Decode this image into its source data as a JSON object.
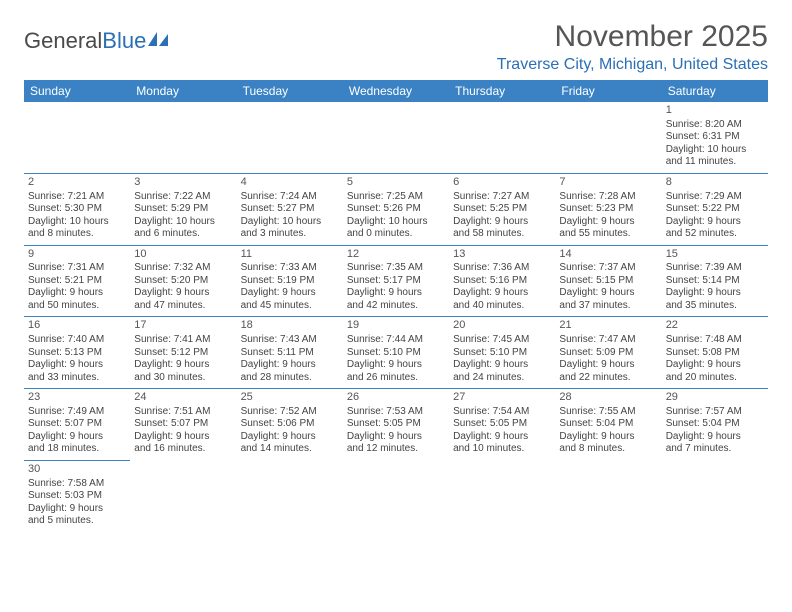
{
  "brand": {
    "part1": "General",
    "part2": "Blue"
  },
  "title": "November 2025",
  "location": "Traverse City, Michigan, United States",
  "header_bg": "#3a82c4",
  "border_color": "#3a82c4",
  "weekdays": [
    "Sunday",
    "Monday",
    "Tuesday",
    "Wednesday",
    "Thursday",
    "Friday",
    "Saturday"
  ],
  "weeks": [
    [
      null,
      null,
      null,
      null,
      null,
      null,
      {
        "n": "1",
        "sr": "Sunrise: 8:20 AM",
        "ss": "Sunset: 6:31 PM",
        "dl1": "Daylight: 10 hours",
        "dl2": "and 11 minutes."
      }
    ],
    [
      {
        "n": "2",
        "sr": "Sunrise: 7:21 AM",
        "ss": "Sunset: 5:30 PM",
        "dl1": "Daylight: 10 hours",
        "dl2": "and 8 minutes."
      },
      {
        "n": "3",
        "sr": "Sunrise: 7:22 AM",
        "ss": "Sunset: 5:29 PM",
        "dl1": "Daylight: 10 hours",
        "dl2": "and 6 minutes."
      },
      {
        "n": "4",
        "sr": "Sunrise: 7:24 AM",
        "ss": "Sunset: 5:27 PM",
        "dl1": "Daylight: 10 hours",
        "dl2": "and 3 minutes."
      },
      {
        "n": "5",
        "sr": "Sunrise: 7:25 AM",
        "ss": "Sunset: 5:26 PM",
        "dl1": "Daylight: 10 hours",
        "dl2": "and 0 minutes."
      },
      {
        "n": "6",
        "sr": "Sunrise: 7:27 AM",
        "ss": "Sunset: 5:25 PM",
        "dl1": "Daylight: 9 hours",
        "dl2": "and 58 minutes."
      },
      {
        "n": "7",
        "sr": "Sunrise: 7:28 AM",
        "ss": "Sunset: 5:23 PM",
        "dl1": "Daylight: 9 hours",
        "dl2": "and 55 minutes."
      },
      {
        "n": "8",
        "sr": "Sunrise: 7:29 AM",
        "ss": "Sunset: 5:22 PM",
        "dl1": "Daylight: 9 hours",
        "dl2": "and 52 minutes."
      }
    ],
    [
      {
        "n": "9",
        "sr": "Sunrise: 7:31 AM",
        "ss": "Sunset: 5:21 PM",
        "dl1": "Daylight: 9 hours",
        "dl2": "and 50 minutes."
      },
      {
        "n": "10",
        "sr": "Sunrise: 7:32 AM",
        "ss": "Sunset: 5:20 PM",
        "dl1": "Daylight: 9 hours",
        "dl2": "and 47 minutes."
      },
      {
        "n": "11",
        "sr": "Sunrise: 7:33 AM",
        "ss": "Sunset: 5:19 PM",
        "dl1": "Daylight: 9 hours",
        "dl2": "and 45 minutes."
      },
      {
        "n": "12",
        "sr": "Sunrise: 7:35 AM",
        "ss": "Sunset: 5:17 PM",
        "dl1": "Daylight: 9 hours",
        "dl2": "and 42 minutes."
      },
      {
        "n": "13",
        "sr": "Sunrise: 7:36 AM",
        "ss": "Sunset: 5:16 PM",
        "dl1": "Daylight: 9 hours",
        "dl2": "and 40 minutes."
      },
      {
        "n": "14",
        "sr": "Sunrise: 7:37 AM",
        "ss": "Sunset: 5:15 PM",
        "dl1": "Daylight: 9 hours",
        "dl2": "and 37 minutes."
      },
      {
        "n": "15",
        "sr": "Sunrise: 7:39 AM",
        "ss": "Sunset: 5:14 PM",
        "dl1": "Daylight: 9 hours",
        "dl2": "and 35 minutes."
      }
    ],
    [
      {
        "n": "16",
        "sr": "Sunrise: 7:40 AM",
        "ss": "Sunset: 5:13 PM",
        "dl1": "Daylight: 9 hours",
        "dl2": "and 33 minutes."
      },
      {
        "n": "17",
        "sr": "Sunrise: 7:41 AM",
        "ss": "Sunset: 5:12 PM",
        "dl1": "Daylight: 9 hours",
        "dl2": "and 30 minutes."
      },
      {
        "n": "18",
        "sr": "Sunrise: 7:43 AM",
        "ss": "Sunset: 5:11 PM",
        "dl1": "Daylight: 9 hours",
        "dl2": "and 28 minutes."
      },
      {
        "n": "19",
        "sr": "Sunrise: 7:44 AM",
        "ss": "Sunset: 5:10 PM",
        "dl1": "Daylight: 9 hours",
        "dl2": "and 26 minutes."
      },
      {
        "n": "20",
        "sr": "Sunrise: 7:45 AM",
        "ss": "Sunset: 5:10 PM",
        "dl1": "Daylight: 9 hours",
        "dl2": "and 24 minutes."
      },
      {
        "n": "21",
        "sr": "Sunrise: 7:47 AM",
        "ss": "Sunset: 5:09 PM",
        "dl1": "Daylight: 9 hours",
        "dl2": "and 22 minutes."
      },
      {
        "n": "22",
        "sr": "Sunrise: 7:48 AM",
        "ss": "Sunset: 5:08 PM",
        "dl1": "Daylight: 9 hours",
        "dl2": "and 20 minutes."
      }
    ],
    [
      {
        "n": "23",
        "sr": "Sunrise: 7:49 AM",
        "ss": "Sunset: 5:07 PM",
        "dl1": "Daylight: 9 hours",
        "dl2": "and 18 minutes."
      },
      {
        "n": "24",
        "sr": "Sunrise: 7:51 AM",
        "ss": "Sunset: 5:07 PM",
        "dl1": "Daylight: 9 hours",
        "dl2": "and 16 minutes."
      },
      {
        "n": "25",
        "sr": "Sunrise: 7:52 AM",
        "ss": "Sunset: 5:06 PM",
        "dl1": "Daylight: 9 hours",
        "dl2": "and 14 minutes."
      },
      {
        "n": "26",
        "sr": "Sunrise: 7:53 AM",
        "ss": "Sunset: 5:05 PM",
        "dl1": "Daylight: 9 hours",
        "dl2": "and 12 minutes."
      },
      {
        "n": "27",
        "sr": "Sunrise: 7:54 AM",
        "ss": "Sunset: 5:05 PM",
        "dl1": "Daylight: 9 hours",
        "dl2": "and 10 minutes."
      },
      {
        "n": "28",
        "sr": "Sunrise: 7:55 AM",
        "ss": "Sunset: 5:04 PM",
        "dl1": "Daylight: 9 hours",
        "dl2": "and 8 minutes."
      },
      {
        "n": "29",
        "sr": "Sunrise: 7:57 AM",
        "ss": "Sunset: 5:04 PM",
        "dl1": "Daylight: 9 hours",
        "dl2": "and 7 minutes."
      }
    ],
    [
      {
        "n": "30",
        "sr": "Sunrise: 7:58 AM",
        "ss": "Sunset: 5:03 PM",
        "dl1": "Daylight: 9 hours",
        "dl2": "and 5 minutes."
      },
      null,
      null,
      null,
      null,
      null,
      null
    ]
  ]
}
